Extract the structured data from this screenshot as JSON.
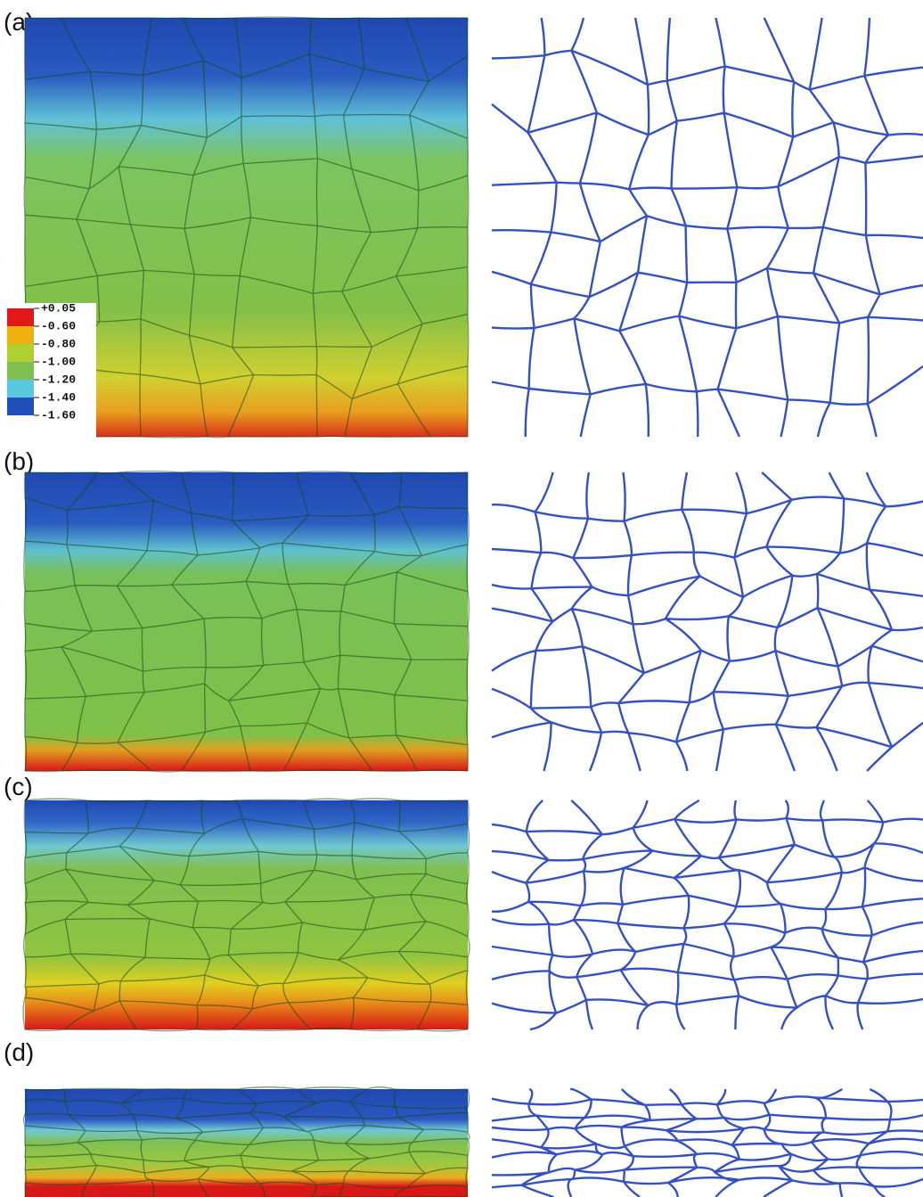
{
  "panels": [
    {
      "label": "(a)"
    },
    {
      "label": "(b)"
    },
    {
      "label": "(c)"
    },
    {
      "label": "(d)"
    }
  ],
  "legend": {
    "labels": [
      "+0.05",
      "-0.60",
      "-0.80",
      "-1.00",
      "-1.20",
      "-1.40",
      "-1.60"
    ],
    "colors": [
      "#e01818",
      "#f0b010",
      "#b0d030",
      "#80c050",
      "#58c8e0",
      "#2050b8"
    ]
  }
}
